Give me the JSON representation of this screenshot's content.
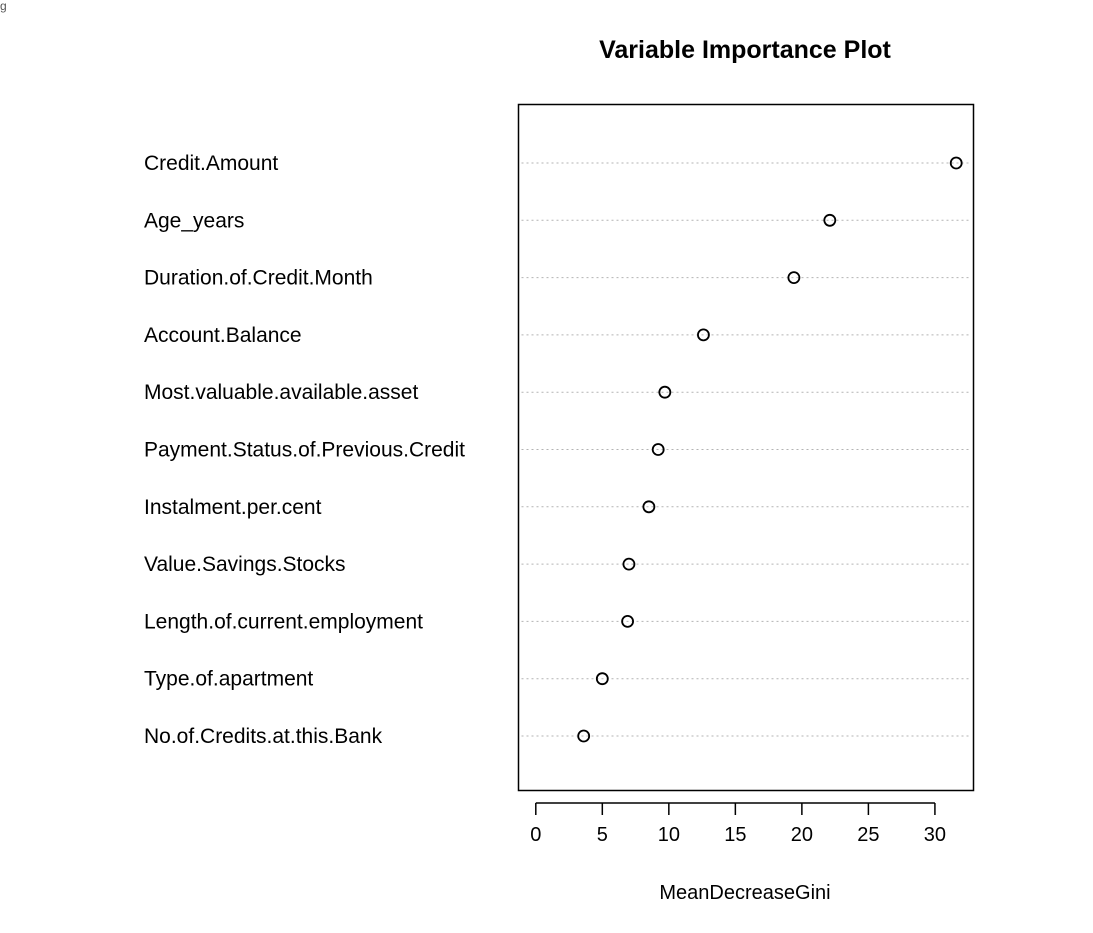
{
  "corner_text": "g",
  "chart_data": {
    "type": "scatter",
    "title": "Variable Importance Plot",
    "xlabel": "MeanDecreaseGini",
    "ylabel": "",
    "xlim": [
      -1.3,
      32.9
    ],
    "xticks": [
      0,
      5,
      10,
      15,
      20,
      25,
      30
    ],
    "grid": "horizontal dotted",
    "categories": [
      "Credit.Amount",
      "Age_years",
      "Duration.of.Credit.Month",
      "Account.Balance",
      "Most.valuable.available.asset",
      "Payment.Status.of.Previous.Credit",
      "Instalment.per.cent",
      "Value.Savings.Stocks",
      "Length.of.current.employment",
      "Type.of.apartment",
      "No.of.Credits.at.this.Bank"
    ],
    "values": [
      31.6,
      22.1,
      19.4,
      12.6,
      9.7,
      9.2,
      8.5,
      7.0,
      6.9,
      5.0,
      3.6
    ]
  }
}
